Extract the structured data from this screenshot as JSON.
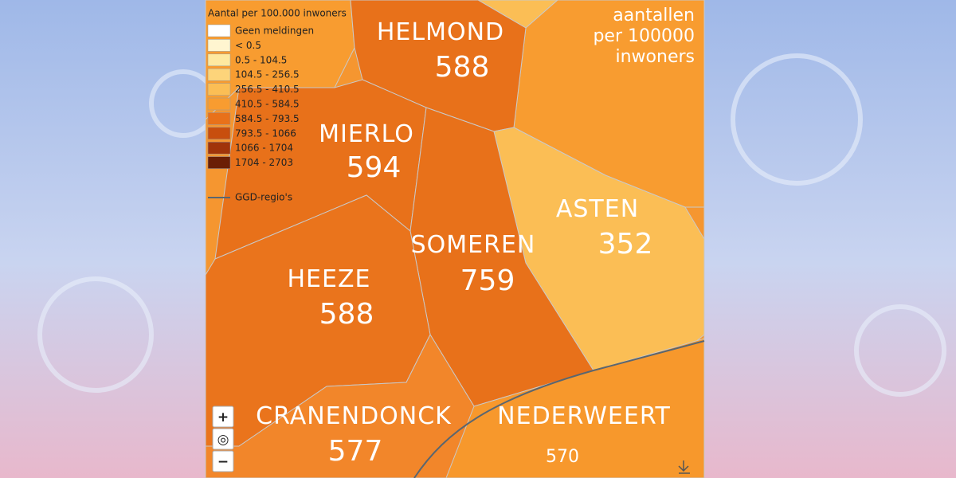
{
  "legend": {
    "title": "Aantal per 100.000 inwoners",
    "items": [
      "Geen meldingen",
      "< 0.5",
      "0.5 - 104.5",
      "104.5 - 256.5",
      "256.5 - 410.5",
      "410.5 - 584.5",
      "584.5 - 793.5",
      "793.5 - 1066",
      "1066 - 1704",
      "1704 - 2703"
    ],
    "border": "GGD-regio's"
  },
  "caption": [
    "aantallen",
    "per 100000",
    "inwoners"
  ],
  "regions": [
    {
      "name": "HELMOND",
      "value": "588"
    },
    {
      "name": "MIERLO",
      "value": "594"
    },
    {
      "name": "ASTEN",
      "value": "352"
    },
    {
      "name": "SOMEREN",
      "value": "759"
    },
    {
      "name": "HEEZE",
      "value": "588"
    },
    {
      "name": "CRANENDONCK",
      "value": "577"
    },
    {
      "name": "NEDERWEERT",
      "value": "570"
    }
  ],
  "controls": [
    "+",
    "◎",
    "−"
  ]
}
